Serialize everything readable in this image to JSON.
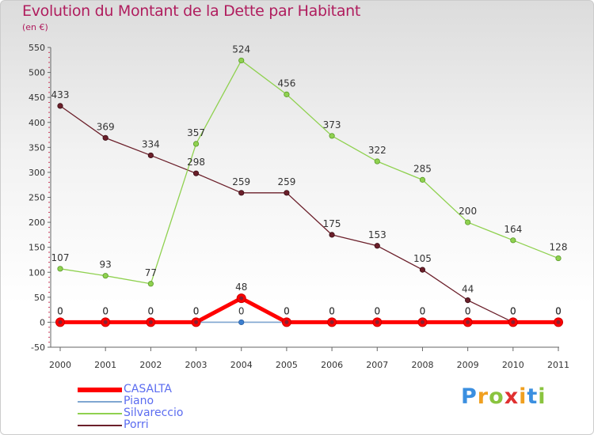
{
  "chart_data": {
    "type": "line",
    "title": "Evolution du Montant de la Dette par Habitant",
    "subtitle": "(en €)",
    "x": [
      "2000",
      "2001",
      "2002",
      "2003",
      "2004",
      "2005",
      "2006",
      "2007",
      "2008",
      "2009",
      "2010",
      "2011"
    ],
    "ylim": [
      -50,
      550
    ],
    "yticks": [
      -50,
      0,
      50,
      100,
      150,
      200,
      250,
      300,
      350,
      400,
      450,
      500,
      550
    ],
    "grid": false,
    "legend_position": "bottom-left",
    "series": [
      {
        "name": "Porri",
        "color": "#6b1f2a",
        "values": [
          433,
          369,
          334,
          298,
          259,
          259,
          175,
          153,
          105,
          44,
          0,
          0
        ]
      },
      {
        "name": "Silvareccio",
        "color": "#8fd14f",
        "values": [
          107,
          93,
          77,
          357,
          524,
          456,
          373,
          322,
          285,
          200,
          164,
          128
        ]
      },
      {
        "name": "Piano",
        "color": "#7fa6d1",
        "values": [
          0,
          0,
          0,
          0,
          0,
          0,
          0,
          0,
          0,
          0,
          0,
          0
        ]
      },
      {
        "name": "CASALTA",
        "color": "#ff0000",
        "values": [
          0,
          0,
          0,
          0,
          48,
          0,
          0,
          0,
          0,
          0,
          0,
          0
        ]
      }
    ],
    "legend_order": [
      "CASALTA",
      "Piano",
      "Silvareccio",
      "Porri"
    ]
  },
  "logo": {
    "letters": [
      "P",
      "r",
      "o",
      "x",
      "i",
      "t",
      "i"
    ],
    "colors": [
      "#3b8fe0",
      "#f0a020",
      "#8ac43f",
      "#e03030",
      "#f0a020",
      "#3b8fe0",
      "#8ac43f"
    ]
  }
}
